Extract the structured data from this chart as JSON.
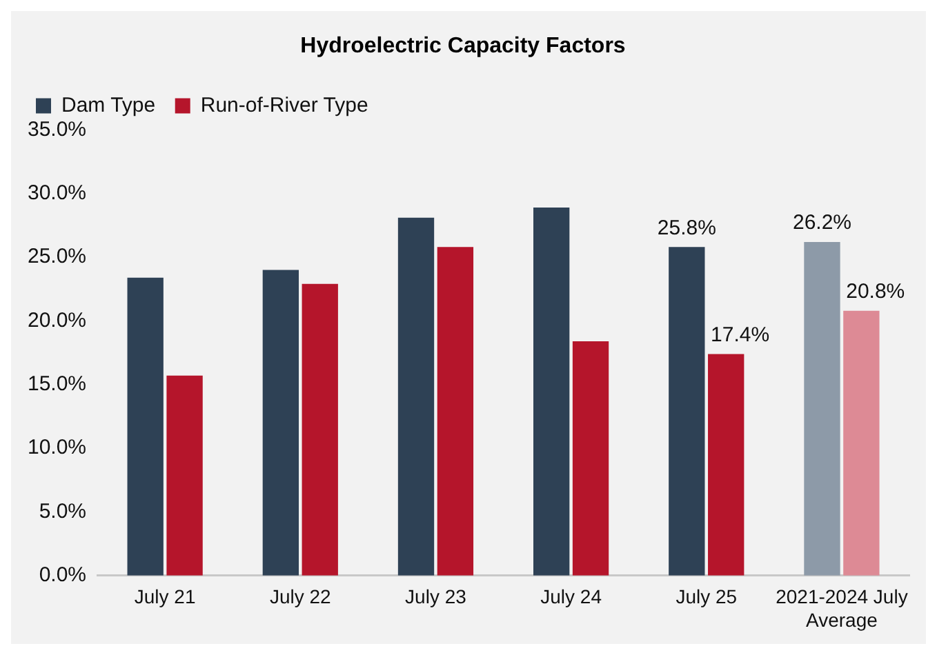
{
  "chart_data": {
    "type": "bar",
    "title": "Hydroelectric Capacity Factors",
    "categories": [
      "July 21",
      "July 22",
      "July 23",
      "July 24",
      "July 25",
      "2021-2024 July Average"
    ],
    "series": [
      {
        "name": "Dam Type",
        "color": "#2e4155",
        "colors": [
          "#2e4155",
          "#2e4155",
          "#2e4155",
          "#2e4155",
          "#2e4155",
          "#8d9aa8"
        ],
        "values": [
          23.4,
          24.0,
          28.1,
          28.9,
          25.8,
          26.2
        ],
        "value_labels": [
          null,
          null,
          null,
          null,
          "25.8%",
          "26.2%"
        ]
      },
      {
        "name": "Run-of-River Type",
        "color": "#b5152b",
        "colors": [
          "#b5152b",
          "#b5152b",
          "#b5152b",
          "#b5152b",
          "#b5152b",
          "#dd8a95"
        ],
        "values": [
          15.7,
          22.9,
          25.8,
          18.4,
          17.4,
          20.8
        ],
        "value_labels": [
          null,
          null,
          null,
          null,
          "17.4%",
          "20.8%"
        ]
      }
    ],
    "ylim": [
      0,
      35
    ],
    "yticks": [
      {
        "value": 0,
        "label": "0.0%"
      },
      {
        "value": 5,
        "label": "5.0%"
      },
      {
        "value": 10,
        "label": "10.0%"
      },
      {
        "value": 15,
        "label": "15.0%"
      },
      {
        "value": 20,
        "label": "20.0%"
      },
      {
        "value": 25,
        "label": "25.0%"
      },
      {
        "value": 30,
        "label": "30.0%"
      },
      {
        "value": 35,
        "label": "35.0%"
      }
    ],
    "grid": false,
    "legend": "top left"
  }
}
